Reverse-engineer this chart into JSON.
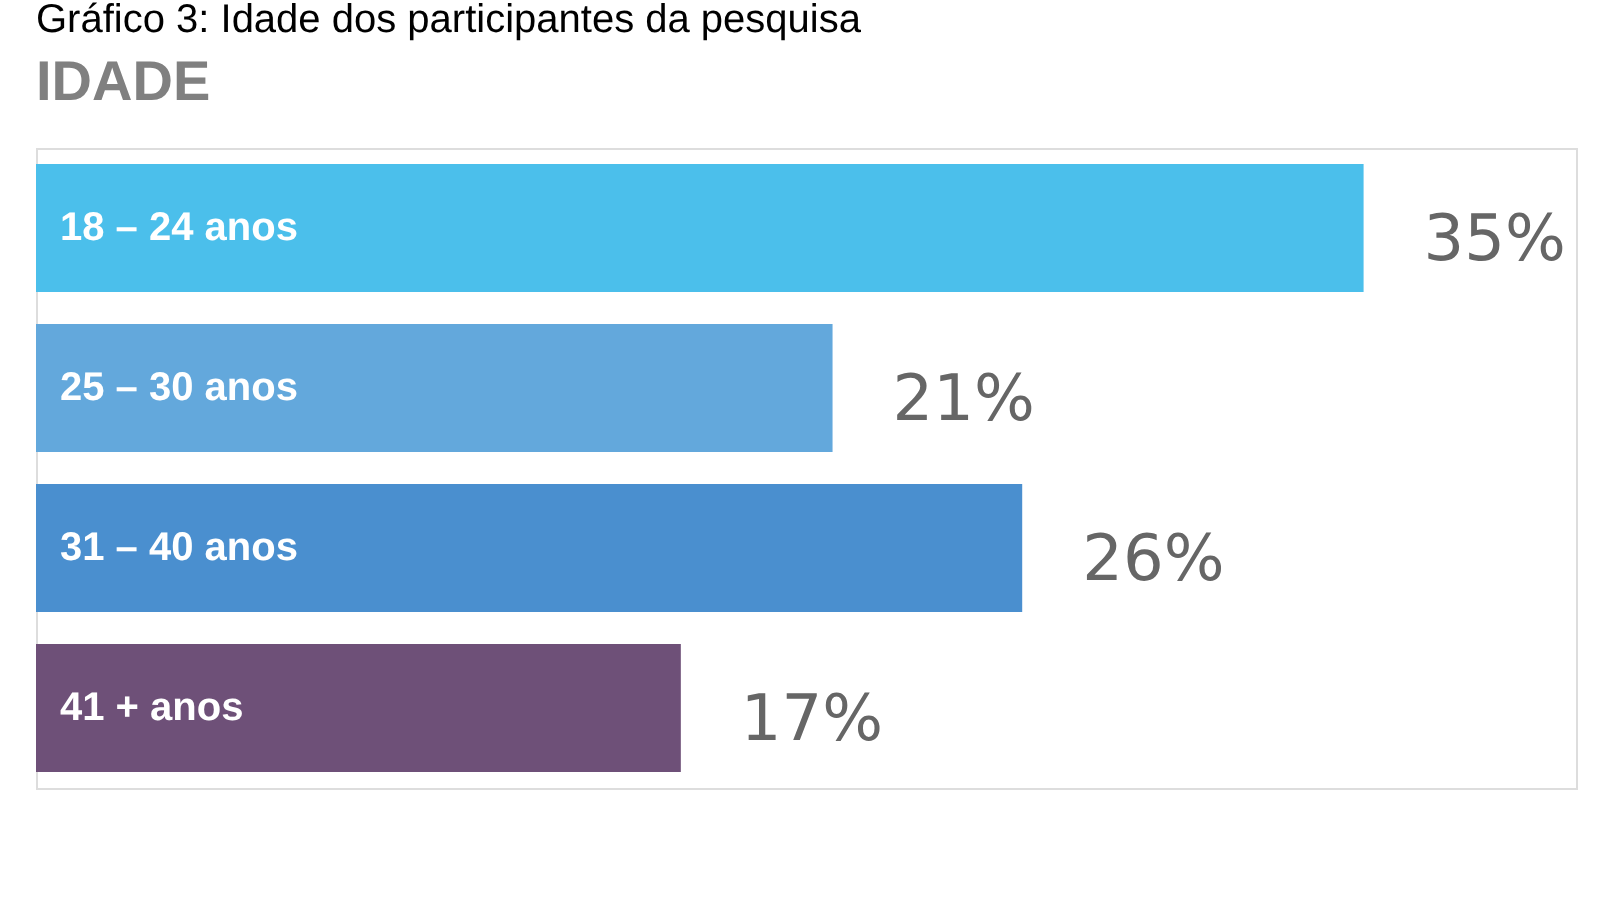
{
  "chart_data": {
    "type": "bar",
    "orientation": "horizontal",
    "title": "Gráfico 3: Idade dos participantes da pesquisa",
    "subtitle": "IDADE",
    "categories": [
      "18  –  24 anos",
      "25  –  30 anos",
      "31  –  40 anos",
      "41 + anos"
    ],
    "values": [
      35,
      21,
      26,
      17
    ],
    "colors": [
      "#4bbfeb",
      "#63a8dc",
      "#4a8fcf",
      "#6e5078"
    ],
    "value_labels": [
      "35%",
      "21%",
      "26%",
      "17%"
    ],
    "tick_labels": false
  }
}
